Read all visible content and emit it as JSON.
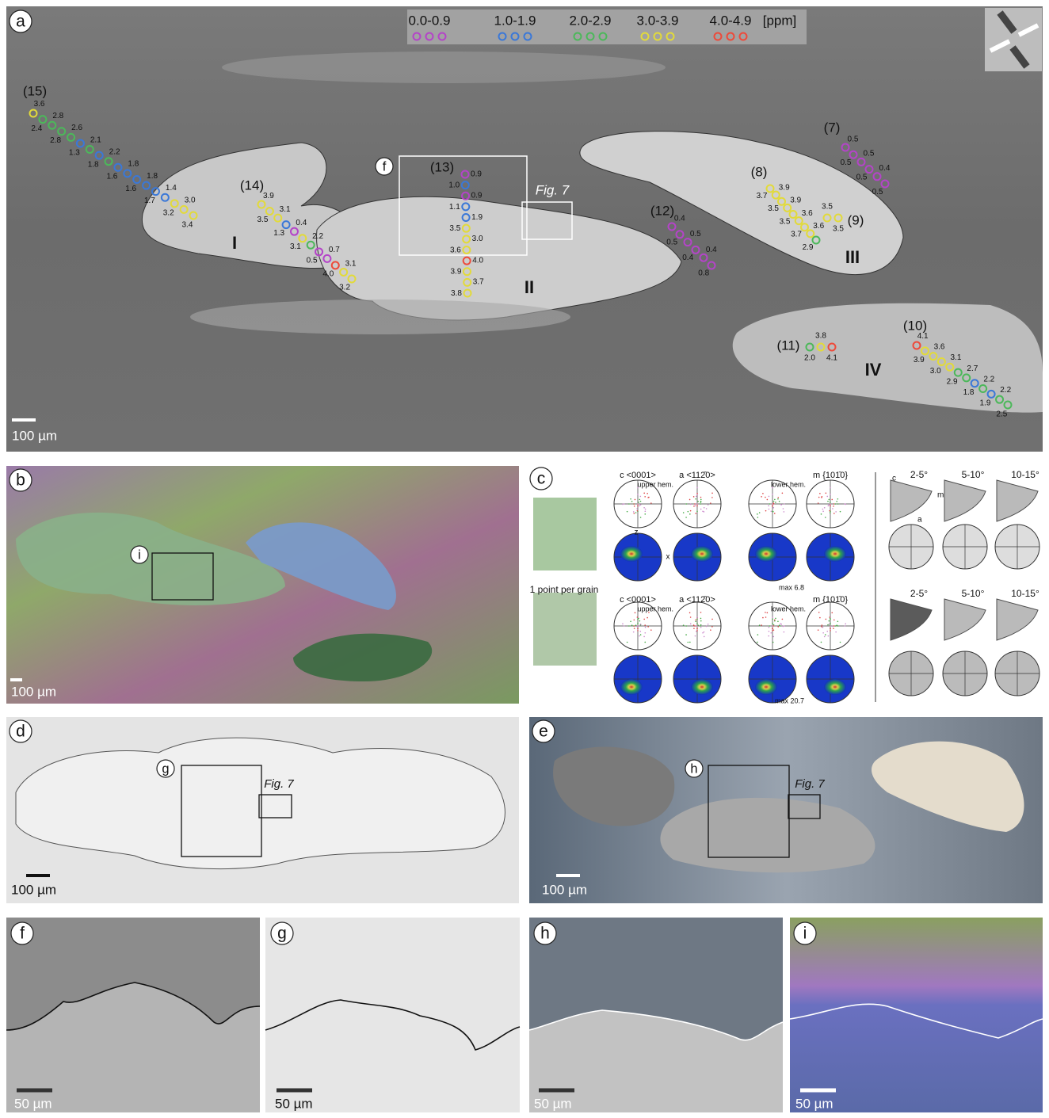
{
  "panel_a": {
    "letter": "a",
    "legend": {
      "ranges": [
        "0.0-0.9",
        "1.0-1.9",
        "2.0-2.9",
        "3.0-3.9",
        "4.0-4.9"
      ],
      "unit": "[ppm]",
      "colors": [
        "#b444c8",
        "#3a78d8",
        "#4cb85a",
        "#e2da3a",
        "#ee4a3a"
      ]
    },
    "transects": [
      {
        "label": "(15)",
        "values": [
          3.6,
          2.4,
          2.8,
          2.8,
          2.6,
          1.3,
          2.1,
          1.8,
          2.2,
          1.6,
          1.8,
          1.6,
          1.8,
          1.7,
          1.4,
          3.2,
          3.0,
          3.4
        ],
        "value_labels": [
          "3.6",
          "2.4",
          "2.8",
          "2.8",
          "2.6",
          "1.3",
          "2.1",
          "1.8",
          "2.2",
          "1.6",
          "1.8",
          "1.6",
          "1.8",
          "1.7",
          "1.4",
          "3.2",
          "3.0",
          "3.4"
        ]
      },
      {
        "label": "(14)",
        "values": [
          3.9,
          3.5,
          3.1,
          1.3,
          0.4,
          3.1,
          2.2,
          0.5,
          0.7,
          4.0,
          3.1,
          3.2
        ],
        "value_labels": [
          "3.9",
          "3.5",
          "3.1",
          "1.3",
          "0.4",
          "3.1",
          "2.2",
          "0.5",
          "0.7",
          "4.0",
          "3.1",
          "3.2"
        ]
      },
      {
        "label": "(13)",
        "values": [
          0.9,
          1.0,
          0.9,
          1.1,
          1.9,
          3.5,
          3.0,
          3.6,
          4.0,
          3.9,
          3.7,
          3.8
        ],
        "value_labels": [
          "0.9",
          "1.0",
          "0.9",
          "1.1",
          "1.9",
          "3.5",
          "3.0",
          "3.6",
          "4.0",
          "3.9",
          "3.7",
          "3.8"
        ]
      },
      {
        "label": "(12)",
        "values": [
          0.4,
          0.5,
          0.5,
          0.4,
          0.4,
          0.8
        ],
        "value_labels": [
          "0.4",
          "0.5",
          "0.5",
          "0.4",
          "0.4",
          "0.8"
        ]
      },
      {
        "label": "(7)",
        "values": [
          0.5,
          0.5,
          0.5,
          0.5,
          0.4,
          0.5
        ],
        "value_labels": [
          "0.5",
          "0.5",
          "0.5",
          "0.5",
          "0.4",
          "0.5"
        ]
      },
      {
        "label": "(8)",
        "values": [
          3.7,
          3.9,
          3.5,
          3.9,
          3.5,
          3.6,
          3.7,
          3.6,
          2.9
        ],
        "value_labels": [
          "3.7",
          "3.9",
          "3.5",
          "3.9",
          "3.5",
          "3.6",
          "3.7",
          "3.6",
          "2.9"
        ]
      },
      {
        "label": "(9)",
        "values": [
          3.5,
          3.5
        ],
        "value_labels": [
          "3.5",
          "3.5"
        ]
      },
      {
        "label": "(11)",
        "values": [
          2.0,
          3.8,
          4.1
        ],
        "value_labels": [
          "2.0",
          "3.8",
          "4.1"
        ]
      },
      {
        "label": "(10)",
        "values": [
          4.1,
          3.9,
          3.6,
          3.0,
          3.1,
          2.9,
          2.7,
          1.8,
          2.2,
          1.9,
          2.2,
          2.5
        ],
        "value_labels": [
          "4.1",
          "3.9",
          "3.6",
          "3.0",
          "3.1",
          "2.9",
          "2.7",
          "1.8",
          "2.2",
          "1.9",
          "2.2",
          "2.5"
        ]
      }
    ],
    "grains": [
      "I",
      "II",
      "III",
      "IV"
    ],
    "inset_letter": "f",
    "fig_ref": "Fig. 7",
    "scale": "100 µm"
  },
  "panel_b": {
    "letter": "b",
    "inset_letter": "i",
    "scale": "100 µm"
  },
  "panel_c": {
    "letter": "c",
    "map_caption": "1 point per grain",
    "rows": [
      {
        "headers": [
          "c <0001>",
          "a <112̄0>",
          "",
          "m {101̄0}"
        ],
        "max": "max 6.8"
      },
      {
        "headers": [
          "c <0001>",
          "a <112̄0>",
          "",
          "m {101̄0}"
        ],
        "max": "max 20.7"
      }
    ],
    "upper": "upper hem.",
    "lower": "lower hem.",
    "axis_z": "z",
    "axis_x": "x",
    "misorientation": [
      "2-5°",
      "5-10°",
      "10-15°"
    ],
    "ipf_labels": [
      "c",
      "m",
      "a"
    ]
  },
  "panel_d": {
    "letter": "d",
    "inset_letter": "g",
    "fig_ref": "Fig. 7",
    "scale": "100 µm"
  },
  "panel_e": {
    "letter": "e",
    "inset_letter": "h",
    "fig_ref": "Fig. 7",
    "scale": "100 µm"
  },
  "panel_f": {
    "letter": "f",
    "scale": "50 µm"
  },
  "panel_g": {
    "letter": "g",
    "scale": "50 µm"
  },
  "panel_h": {
    "letter": "h",
    "scale": "50 µm"
  },
  "panel_i": {
    "letter": "i",
    "scale": "50 µm"
  }
}
